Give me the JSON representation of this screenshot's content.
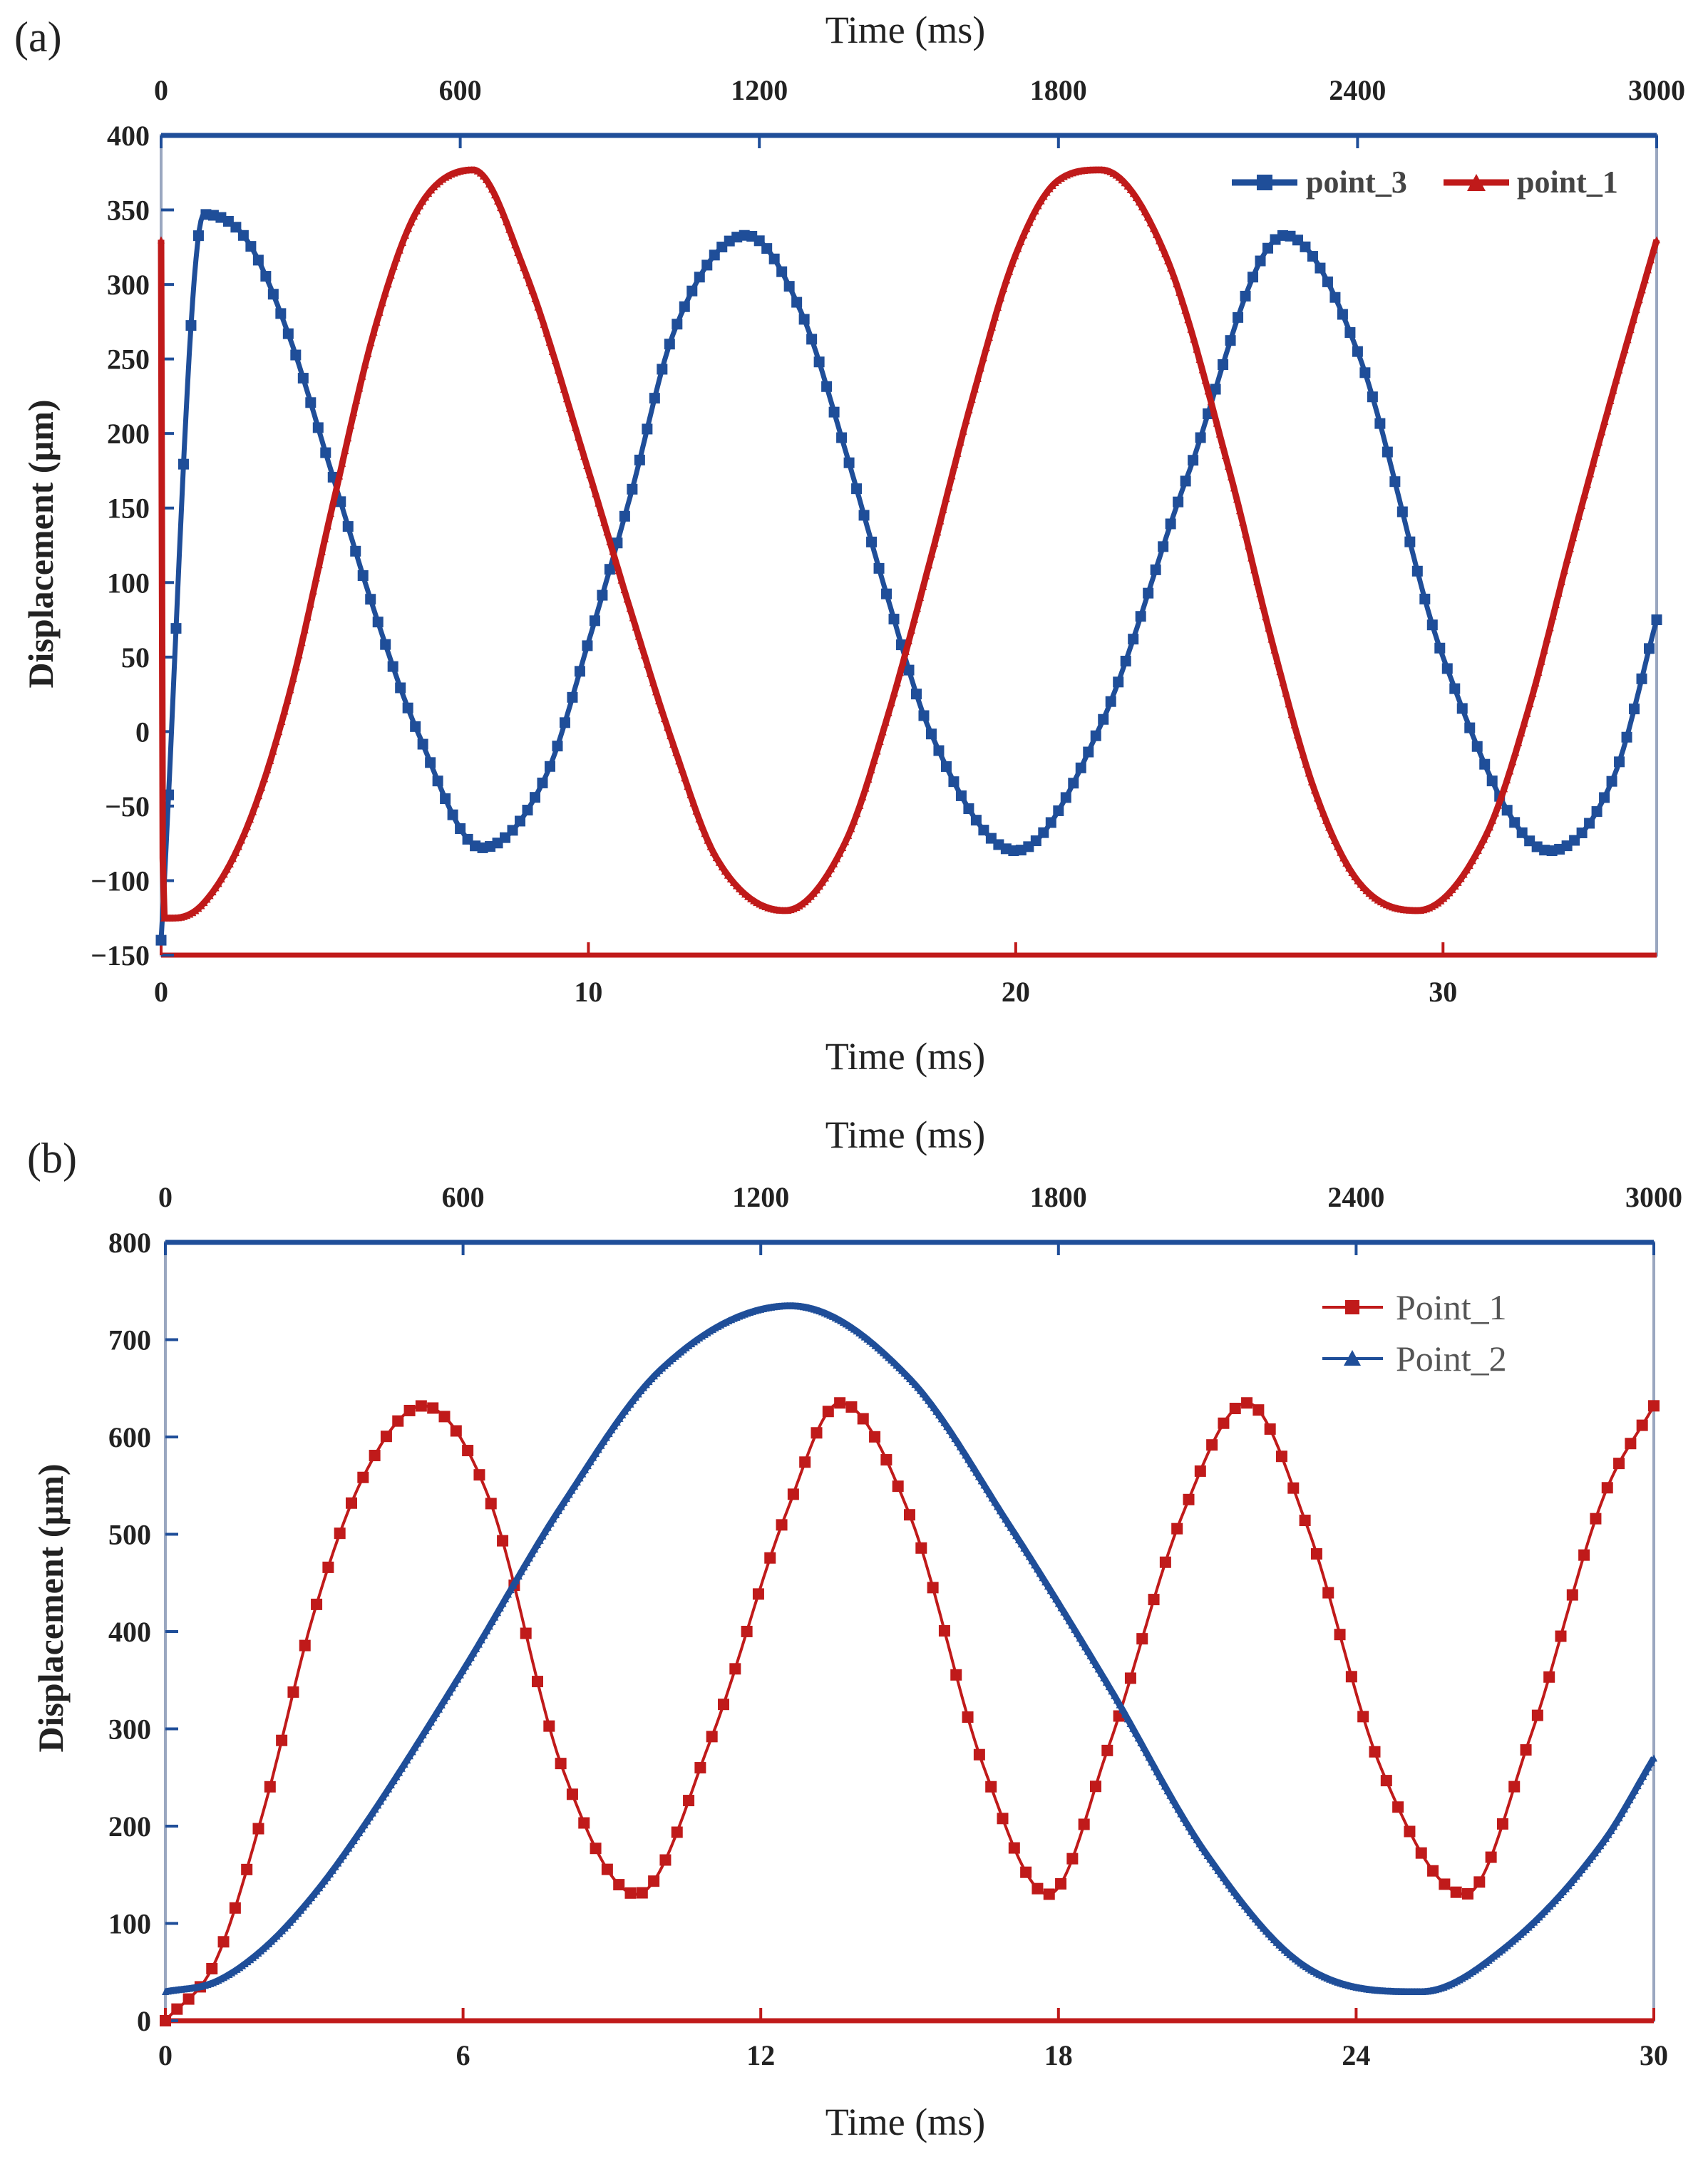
{
  "colors": {
    "blue": "#1f4e99",
    "red": "#c01a1a",
    "axis_text": "#222222"
  },
  "chart_data": [
    {
      "panel_label": "(a)",
      "type": "line",
      "title": "",
      "xlabel": "Time (ms)",
      "xlabel_top": "Time (ms)",
      "ylabel": "Displacement (µm)",
      "xlim": [
        0,
        35
      ],
      "xlim_top": [
        0,
        3000
      ],
      "ylim": [
        -150,
        400
      ],
      "xticks": [
        0,
        10,
        20,
        30
      ],
      "xtick_labels": [
        "0",
        "10",
        "20",
        "30"
      ],
      "xticks_top": [
        0,
        600,
        1200,
        1800,
        2400,
        3000
      ],
      "xtick_labels_top": [
        "0",
        "600",
        "1200",
        "1800",
        "2400",
        "3000"
      ],
      "yticks": [
        -150,
        -100,
        -50,
        0,
        50,
        100,
        150,
        200,
        250,
        300,
        350,
        400
      ],
      "ytick_labels": [
        "−150",
        "−100",
        "−50",
        "0",
        "50",
        "100",
        "150",
        "200",
        "250",
        "300",
        "350",
        "400"
      ],
      "legend_position": "top-right",
      "legend_style": "bold",
      "series": [
        {
          "name": "point_3",
          "color": "#1f4e99",
          "marker": "square",
          "x": [
            0,
            1,
            2,
            3,
            4,
            5,
            6,
            7.5,
            9,
            10,
            11,
            12,
            13.7,
            15,
            16,
            17,
            18,
            20,
            22,
            24,
            26.3,
            28,
            30,
            32.5,
            34,
            35
          ],
          "y": [
            -140,
            347,
            330,
            265,
            173,
            80,
            0,
            -78,
            -30,
            60,
            160,
            268,
            333,
            280,
            190,
            90,
            0,
            -80,
            5,
            170,
            333,
            255,
            50,
            -80,
            -30,
            75
          ]
        },
        {
          "name": "point_1",
          "color": "#c01a1a",
          "marker": "triangle",
          "x": [
            0,
            0.05,
            0.3,
            1,
            2,
            3,
            4,
            5,
            6,
            7.3,
            8.5,
            10,
            11,
            12,
            13,
            14.6,
            16,
            17,
            18,
            19,
            20,
            21,
            22,
            23.5,
            25,
            26,
            27,
            28,
            29.4,
            31,
            32,
            33,
            34,
            35
          ],
          "y": [
            330,
            -125,
            -125,
            -115,
            -65,
            25,
            150,
            270,
            350,
            377,
            310,
            175,
            80,
            -10,
            -85,
            -120,
            -75,
            10,
            115,
            225,
            320,
            370,
            377,
            320,
            175,
            60,
            -40,
            -100,
            -120,
            -70,
            15,
            125,
            230,
            330
          ]
        }
      ]
    },
    {
      "panel_label": "(b)",
      "type": "line",
      "title": "",
      "xlabel": "Time (ms)",
      "xlabel_top": "Time (ms)",
      "ylabel": "Displacement (µm)",
      "xlim": [
        0,
        30
      ],
      "xlim_top": [
        0,
        3000
      ],
      "ylim": [
        0,
        800
      ],
      "xticks": [
        0,
        6,
        12,
        18,
        24,
        30
      ],
      "xtick_labels": [
        "0",
        "6",
        "12",
        "18",
        "24",
        "30"
      ],
      "xticks_top": [
        0,
        600,
        1200,
        1800,
        2400,
        3000
      ],
      "xtick_labels_top": [
        "0",
        "600",
        "1200",
        "1800",
        "2400",
        "3000"
      ],
      "yticks": [
        0,
        100,
        200,
        300,
        400,
        500,
        600,
        700,
        800
      ],
      "ytick_labels": [
        "0",
        "100",
        "200",
        "300",
        "400",
        "500",
        "600",
        "700",
        "800"
      ],
      "legend_position": "top-right",
      "legend_style": "regular",
      "series": [
        {
          "name": "Point_1",
          "color": "#c01a1a",
          "marker": "square",
          "x": [
            0,
            1,
            2,
            3,
            4,
            5.2,
            6.5,
            8,
            9.5,
            11,
            12.5,
            13.6,
            15,
            16.5,
            17.8,
            19,
            20.5,
            21.8,
            23,
            24.5,
            26.2,
            27.5,
            29,
            30
          ],
          "y": [
            0,
            60,
            220,
            420,
            560,
            632,
            540,
            260,
            130,
            290,
            520,
            635,
            520,
            260,
            130,
            280,
            520,
            635,
            510,
            260,
            130,
            290,
            540,
            632
          ]
        },
        {
          "name": "Point_2",
          "color": "#1f4e99",
          "marker": "triangle",
          "x": [
            0,
            1,
            2,
            3,
            4,
            6,
            8,
            10,
            12.6,
            15,
            17,
            19,
            21,
            23,
            25.3,
            27,
            29,
            30
          ],
          "y": [
            30,
            40,
            75,
            130,
            200,
            360,
            530,
            670,
            735,
            660,
            510,
            345,
            170,
            55,
            30,
            75,
            185,
            270
          ]
        }
      ]
    }
  ]
}
